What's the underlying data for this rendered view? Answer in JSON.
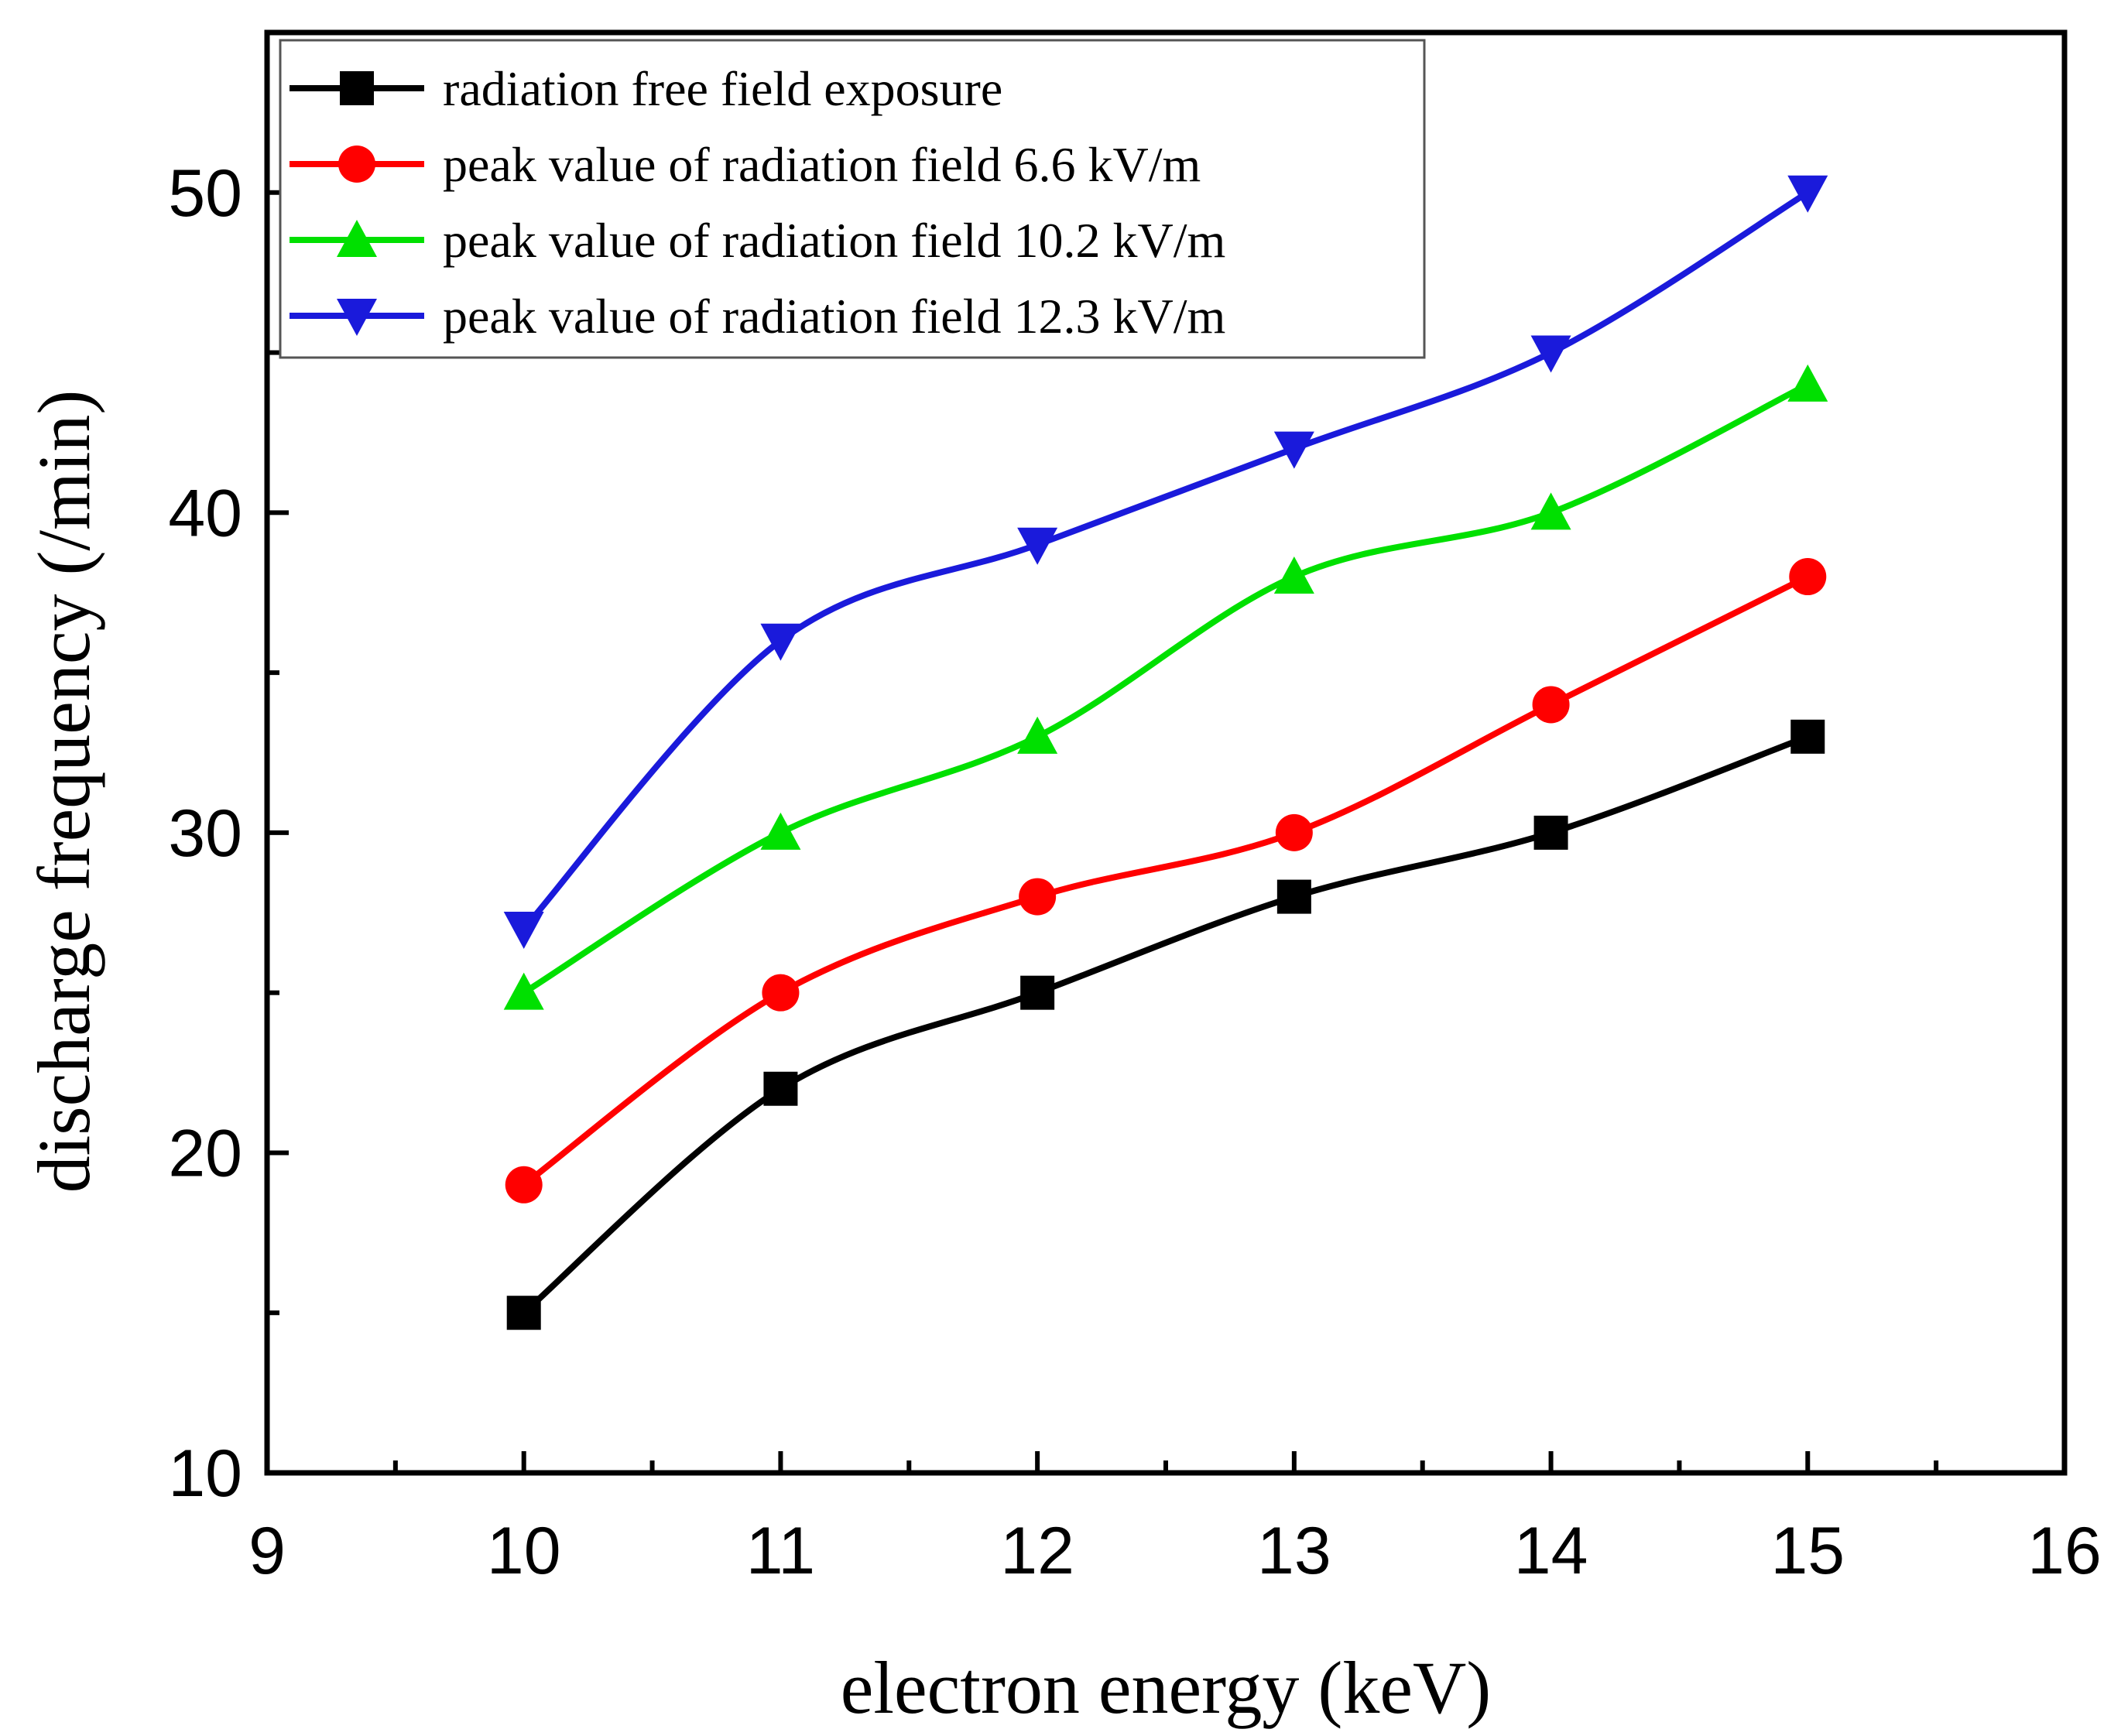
{
  "chart_data": {
    "type": "line",
    "title": "",
    "xlabel": "electron energy (keV)",
    "ylabel": "discharge frequency (/min)",
    "xlim": [
      9,
      16
    ],
    "ylim": [
      10,
      55
    ],
    "x_ticks": [
      9,
      10,
      11,
      12,
      13,
      14,
      15,
      16
    ],
    "y_ticks": [
      10,
      20,
      30,
      40,
      50
    ],
    "grid": false,
    "legend_position": "top-left",
    "x": [
      10,
      11,
      12,
      13,
      14,
      15
    ],
    "series": [
      {
        "name": "radiation free field exposure",
        "marker": "square",
        "color": "#000000",
        "values": [
          15,
          22,
          25,
          28,
          30,
          33
        ]
      },
      {
        "name": "peak value of radiation field 6.6 kV/m",
        "marker": "circle",
        "color": "#ff0000",
        "values": [
          19,
          25,
          28,
          30,
          34,
          38
        ]
      },
      {
        "name": "peak value of radiation field 10.2 kV/m",
        "marker": "triangle-up",
        "color": "#00e000",
        "values": [
          25,
          30,
          33,
          38,
          40,
          44
        ]
      },
      {
        "name": "peak value of radiation field 12.3 kV/m",
        "marker": "triangle-down",
        "color": "#1a1adb",
        "values": [
          27,
          36,
          39,
          42,
          45,
          50
        ]
      }
    ]
  }
}
